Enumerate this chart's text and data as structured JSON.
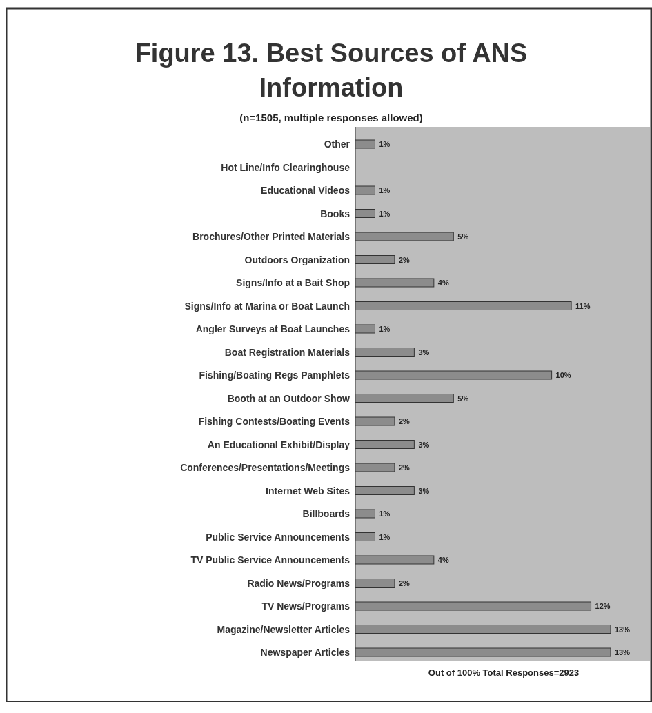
{
  "chart_data": {
    "type": "bar",
    "orientation": "horizontal",
    "title": "Figure 13. Best Sources of ANS Information",
    "subtitle": "(n=1505, multiple responses allowed)",
    "xlabel": "Out of 100% Total Responses=2923",
    "categories": [
      "Other",
      "Hot Line/Info Clearinghouse",
      "Educational Videos",
      "Books",
      "Brochures/Other Printed Materials",
      "Outdoors Organization",
      "Signs/Info at a Bait Shop",
      "Signs/Info at Marina or Boat Launch",
      "Angler Surveys at Boat Launches",
      "Boat Registration Materials",
      "Fishing/Boating Regs Pamphlets",
      "Booth at an Outdoor Show",
      "Fishing Contests/Boating Events",
      "An Educational Exhibit/Display",
      "Conferences/Presentations/Meetings",
      "Internet Web Sites",
      "Billboards",
      "Public Service Announcements",
      "TV Public Service Announcements",
      "Radio News/Programs",
      "TV News/Programs",
      "Magazine/Newsletter Articles",
      "Newspaper Articles"
    ],
    "values": [
      1,
      null,
      1,
      1,
      5,
      2,
      4,
      11,
      1,
      3,
      10,
      5,
      2,
      3,
      2,
      3,
      1,
      1,
      4,
      2,
      12,
      13,
      13
    ],
    "value_labels": [
      "1%",
      null,
      "1%",
      "1%",
      "5%",
      "2%",
      "4%",
      "11%",
      "1%",
      "3%",
      "10%",
      "5%",
      "2%",
      "3%",
      "2%",
      "3%",
      "1%",
      "1%",
      "4%",
      "2%",
      "12%",
      "13%",
      "13%"
    ],
    "color": "#8c8c8c"
  }
}
